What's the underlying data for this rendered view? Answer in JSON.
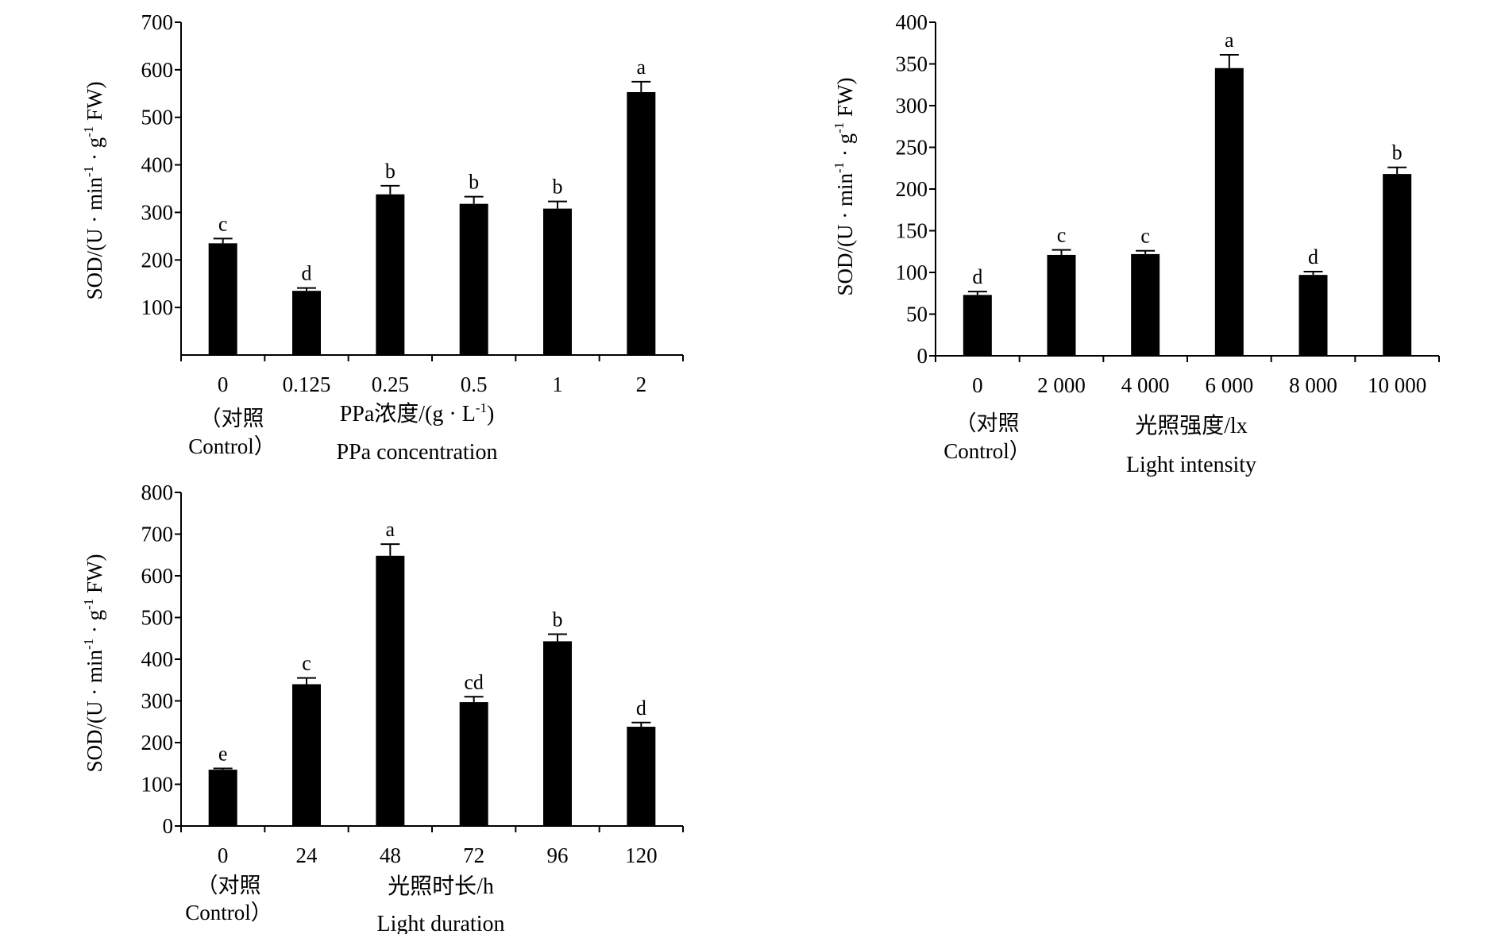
{
  "chart_data": [
    {
      "type": "bar",
      "categories": [
        "0",
        "0.125",
        "0.25",
        "0.5",
        "1",
        "2"
      ],
      "values": [
        235,
        135,
        338,
        318,
        308,
        553
      ],
      "errors": [
        10,
        6,
        18,
        15,
        15,
        22
      ],
      "letters": [
        "c",
        "d",
        "b",
        "b",
        "b",
        "a"
      ],
      "control_label": [
        "（对照",
        "Control）"
      ],
      "xlabel_cn_prefix": "PPa浓度/(g · L",
      "xlabel_cn_sup": "-1",
      "xlabel_cn_suffix": ")",
      "xlabel_en": "PPa concentration",
      "ylabel": {
        "base": "SOD/(U · min",
        "sup1": "-1",
        "mid": " · g",
        "sup2": "-1",
        "end": " FW)"
      },
      "ylim": [
        0,
        700
      ],
      "yticks": [
        100,
        200,
        300,
        400,
        500,
        600,
        700
      ]
    },
    {
      "type": "bar",
      "categories": [
        "0",
        "2 000",
        "4 000",
        "6 000",
        "8 000",
        "10 000"
      ],
      "values": [
        73,
        121,
        122,
        345,
        97,
        218
      ],
      "errors": [
        4,
        6,
        4,
        16,
        4,
        8
      ],
      "letters": [
        "d",
        "c",
        "c",
        "a",
        "d",
        "b"
      ],
      "control_label": [
        "（对照",
        "Control）"
      ],
      "xlabel_cn_prefix": "光照强度/lx",
      "xlabel_cn_sup": "",
      "xlabel_cn_suffix": "",
      "xlabel_en": "Light intensity",
      "ylabel": {
        "base": "SOD/(U · min",
        "sup1": "-1",
        "mid": " · g",
        "sup2": "-1",
        "end": " FW)"
      },
      "ylim": [
        0,
        400
      ],
      "yticks": [
        0,
        50,
        100,
        150,
        200,
        250,
        300,
        350,
        400
      ]
    },
    {
      "type": "bar",
      "categories": [
        "0",
        "24",
        "48",
        "72",
        "96",
        "120"
      ],
      "values": [
        135,
        340,
        648,
        297,
        443,
        238
      ],
      "errors": [
        3,
        15,
        28,
        13,
        17,
        10
      ],
      "letters": [
        "e",
        "c",
        "a",
        "cd",
        "b",
        "d"
      ],
      "control_label": [
        "（对照",
        "Control）"
      ],
      "xlabel_cn_prefix": "光照时长/h",
      "xlabel_cn_sup": "",
      "xlabel_cn_suffix": "",
      "xlabel_en": "Light duration",
      "ylabel": {
        "base": "SOD/(U · min",
        "sup1": "-1",
        "mid": " · g",
        "sup2": "-1",
        "end": " FW)"
      },
      "ylim": [
        0,
        800
      ],
      "yticks": [
        0,
        100,
        200,
        300,
        400,
        500,
        600,
        700,
        800
      ]
    }
  ]
}
